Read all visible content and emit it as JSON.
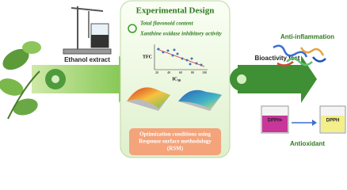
{
  "center": {
    "title": "Experimental Design",
    "items": [
      "Total flavonoid content",
      "Xanthine oxidase inhibitory activity"
    ],
    "scatter": {
      "y_label": "TFC",
      "x_label": "IC",
      "x_label_sub": "50",
      "x_ticks": [
        "20",
        "40",
        "60",
        "80",
        "100"
      ]
    },
    "rsm_box": [
      "Optimization conditions using",
      "Response surface methodology",
      "(RSM)"
    ]
  },
  "left": {
    "label": "Ethanol extract"
  },
  "right": {
    "label": "Bioactivity test",
    "top": "Anti-inflammation",
    "bottom": "Antioxidant",
    "beakers": [
      "DPPH•",
      "DPPH"
    ]
  }
}
